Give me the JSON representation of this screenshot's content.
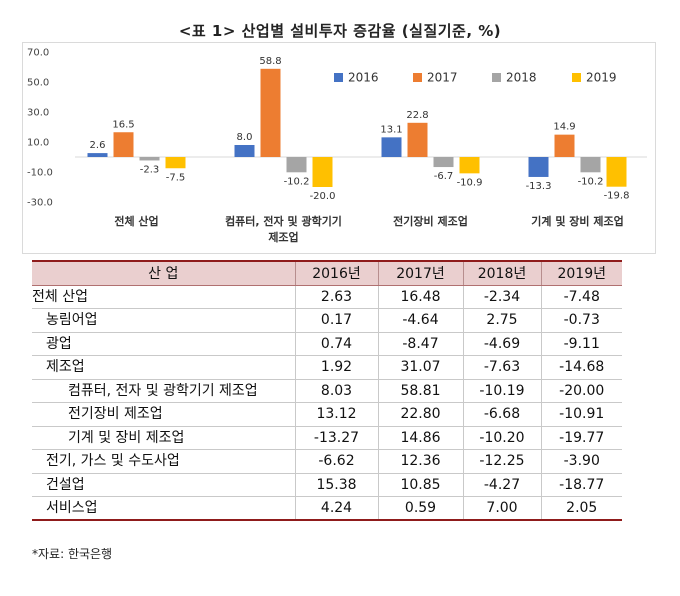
{
  "title": "<표 1> 산업별 설비투자 증감율 (실질기준, %)",
  "chart_data": {
    "type": "bar",
    "title": "",
    "categories": [
      "전체 산업",
      "컴퓨터, 전자 및 광학기기 제조업",
      "전기장비 제조업",
      "기계 및 장비 제조업"
    ],
    "series": [
      {
        "name": "2016",
        "color": "#4472c4",
        "values": [
          2.6,
          8.0,
          13.1,
          -13.3
        ]
      },
      {
        "name": "2017",
        "color": "#ed7d31",
        "values": [
          16.5,
          58.8,
          22.8,
          14.9
        ]
      },
      {
        "name": "2018",
        "color": "#a5a5a5",
        "values": [
          -2.3,
          -10.2,
          -6.7,
          -10.2
        ]
      },
      {
        "name": "2019",
        "color": "#ffc000",
        "values": [
          -7.5,
          -20.0,
          -10.9,
          -19.8
        ]
      }
    ],
    "data_labels": [
      [
        "2.6",
        "8.0",
        "13.1",
        "-13.3"
      ],
      [
        "16.5",
        "58.8",
        "22.8",
        "14.9"
      ],
      [
        "-2.3",
        "-10.2",
        "-6.7",
        "-10.2"
      ],
      [
        "-7.5",
        "-20.0",
        "-10.9",
        "-19.8"
      ]
    ],
    "ylim": [
      -30,
      70
    ],
    "yticks": [
      "70.0",
      "50.0",
      "30.0",
      "10.0",
      "-10.0",
      "-30.0"
    ],
    "xlabel": "",
    "ylabel": "",
    "grid": false,
    "legend": "top-right"
  },
  "table": {
    "headers": [
      "산 업",
      "2016년",
      "2017년",
      "2018년",
      "2019년"
    ],
    "rows": [
      {
        "label": "전체 산업",
        "level": 0,
        "values": [
          "2.63",
          "16.48",
          "-2.34",
          "-7.48"
        ]
      },
      {
        "label": "농림어업",
        "level": 1,
        "values": [
          "0.17",
          "-4.64",
          "2.75",
          "-0.73"
        ]
      },
      {
        "label": "광업",
        "level": 1,
        "values": [
          "0.74",
          "-8.47",
          "-4.69",
          "-9.11"
        ]
      },
      {
        "label": "제조업",
        "level": 1,
        "values": [
          "1.92",
          "31.07",
          "-7.63",
          "-14.68"
        ]
      },
      {
        "label": "컴퓨터, 전자 및 광학기기 제조업",
        "level": 2,
        "values": [
          "8.03",
          "58.81",
          "-10.19",
          "-20.00"
        ]
      },
      {
        "label": "전기장비 제조업",
        "level": 2,
        "values": [
          "13.12",
          "22.80",
          "-6.68",
          "-10.91"
        ]
      },
      {
        "label": "기계 및 장비 제조업",
        "level": 2,
        "values": [
          "-13.27",
          "14.86",
          "-10.20",
          "-19.77"
        ]
      },
      {
        "label": "전기, 가스 및 수도사업",
        "level": 1,
        "values": [
          "-6.62",
          "12.36",
          "-12.25",
          "-3.90"
        ]
      },
      {
        "label": "건설업",
        "level": 1,
        "values": [
          "15.38",
          "10.85",
          "-4.27",
          "-18.77"
        ]
      },
      {
        "label": "서비스업",
        "level": 1,
        "values": [
          "4.24",
          "0.59",
          "7.00",
          "2.05"
        ]
      }
    ]
  },
  "source": "*자료: 한국은행"
}
